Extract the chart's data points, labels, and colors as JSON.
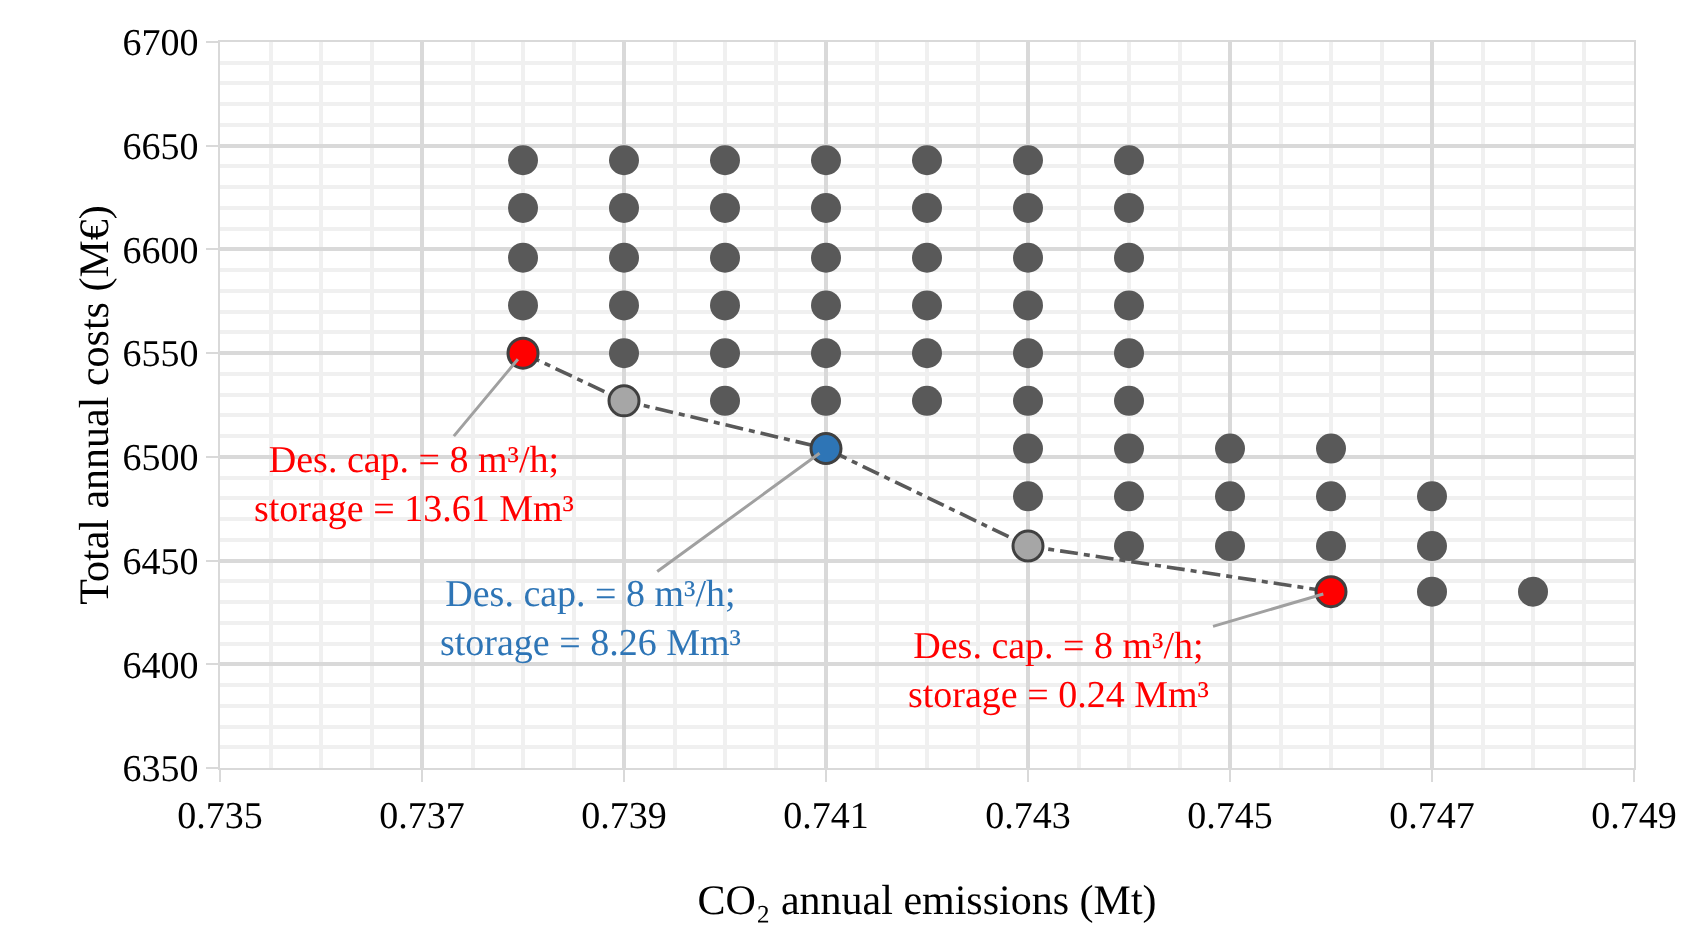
{
  "chart_data": {
    "type": "scatter",
    "xlabel": "CO₂ annual emissions (Mt)",
    "ylabel": "Total annual costs (M€)",
    "xlim": [
      0.735,
      0.749
    ],
    "xticks": [
      0.735,
      0.737,
      0.739,
      0.741,
      0.743,
      0.745,
      0.747,
      0.749
    ],
    "ylim": [
      6350,
      6700
    ],
    "yticks": [
      6350,
      6400,
      6450,
      6500,
      6550,
      6600,
      6650,
      6700
    ],
    "grid": true,
    "marker": "circle",
    "series": [
      {
        "color": "#595959",
        "x": [
          0.738,
          0.738,
          0.738,
          0.738,
          0.739,
          0.739,
          0.739,
          0.739,
          0.739,
          0.74,
          0.74,
          0.74,
          0.74,
          0.74,
          0.74,
          0.741,
          0.741,
          0.741,
          0.741,
          0.741,
          0.741,
          0.742,
          0.742,
          0.742,
          0.742,
          0.742,
          0.742,
          0.743,
          0.743,
          0.743,
          0.743,
          0.743,
          0.743,
          0.743,
          0.743,
          0.744,
          0.744,
          0.744,
          0.744,
          0.744,
          0.744,
          0.744,
          0.744,
          0.744,
          0.745,
          0.745,
          0.745,
          0.746,
          0.746,
          0.746,
          0.747,
          0.747,
          0.747,
          0.748
        ],
        "values": [
          6643,
          6620,
          6596,
          6573,
          6643,
          6620,
          6596,
          6573,
          6550,
          6643,
          6620,
          6596,
          6573,
          6550,
          6527,
          6643,
          6620,
          6596,
          6573,
          6550,
          6527,
          6643,
          6620,
          6596,
          6573,
          6550,
          6527,
          6643,
          6620,
          6596,
          6573,
          6550,
          6527,
          6504,
          6481,
          6643,
          6620,
          6596,
          6573,
          6550,
          6527,
          6504,
          6481,
          6457,
          6504,
          6481,
          6457,
          6504,
          6481,
          6457,
          6481,
          6457,
          6435,
          6435
        ]
      },
      {
        "type": "line",
        "line_style": "dashed",
        "color": "#595959",
        "colors": [
          "#ff0000",
          "#a6a6a6",
          "#2e75b6",
          "#a6a6a6",
          "#ff0000"
        ],
        "x": [
          0.738,
          0.739,
          0.741,
          0.743,
          0.746
        ],
        "values": [
          6550,
          6527,
          6504,
          6457,
          6435
        ]
      }
    ],
    "annotations": [
      {
        "text": "Des. cap. = 8 m³/h;\nstorage = 13.61 Mm³",
        "x": 0.738,
        "y": 6550
      },
      {
        "text": "Des. cap. = 8 m³/h;\nstorage = 8.26 Mm³",
        "x": 0.741,
        "y": 6504
      },
      {
        "text": "Des. cap. = 8 m³/h;\nstorage = 0.24 Mm³",
        "x": 0.746,
        "y": 6435
      }
    ]
  }
}
